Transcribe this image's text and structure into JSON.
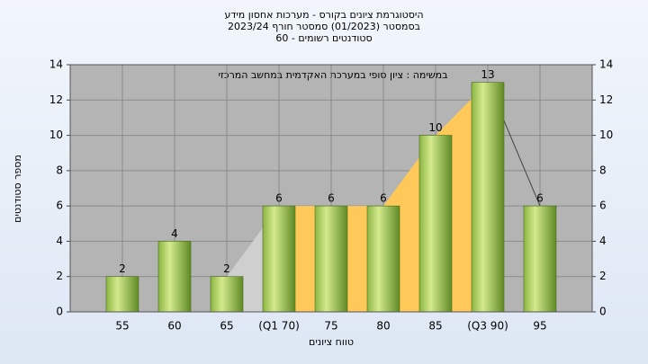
{
  "chart_data": {
    "type": "bar",
    "title": [
      "היסטוגרמת ציונים בקורס - מערכות אחסון מידע",
      "בסמסטר (01/2023) סמסטר חורף 2023/24",
      "סטודנטים רשומים - 60"
    ],
    "annotation": "במשימה : ציון סופי במערכת האקדמית במחשב המרכזי",
    "x_label": "טווח ציונים",
    "y_label": "מספר סטודנטים",
    "categories": [
      "55",
      "60",
      "65",
      "(Q1 70)",
      "75",
      "80",
      "85",
      "(Q3 90)",
      "95"
    ],
    "values": [
      2,
      4,
      2,
      6,
      6,
      6,
      10,
      13,
      6
    ],
    "ylim": [
      0,
      14
    ],
    "yticks": [
      0,
      2,
      4,
      6,
      8,
      10,
      12,
      14
    ],
    "y2lim": [
      0,
      14
    ],
    "y2ticks": [
      0,
      2,
      4,
      6,
      8,
      10,
      12,
      14
    ],
    "grid": true
  }
}
